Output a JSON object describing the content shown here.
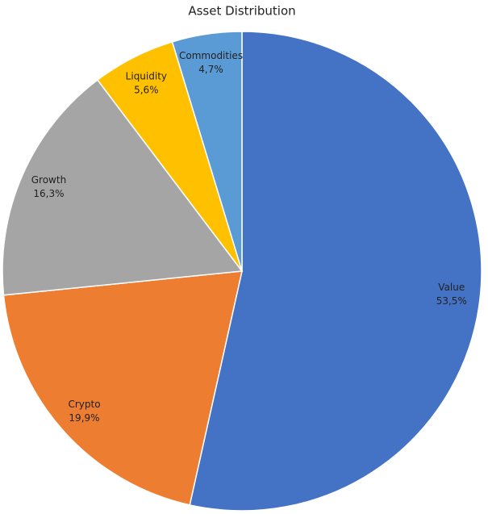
{
  "chart_data": {
    "type": "pie",
    "title": "Asset Distribution",
    "categories": [
      "Value",
      "Crypto",
      "Growth",
      "Liquidity",
      "Commodities"
    ],
    "values": [
      53.5,
      19.9,
      16.3,
      5.6,
      4.7
    ],
    "value_labels": [
      "53,5%",
      "19,9%",
      "16,3%",
      "5,6%",
      "4,7%"
    ],
    "colors": [
      "#4472c4",
      "#ed7d31",
      "#a5a5a5",
      "#ffc000",
      "#5b9bd5"
    ]
  }
}
